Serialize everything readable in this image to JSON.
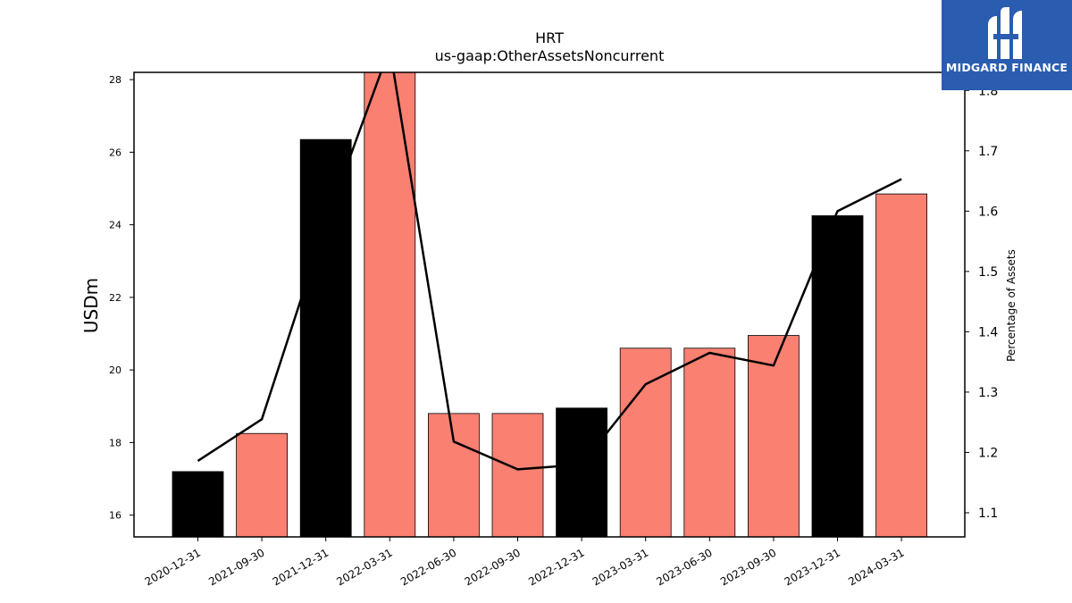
{
  "chart_data": {
    "type": "bar",
    "title": "HRT",
    "subtitle": "us-gaap:OtherAssetsNoncurrent",
    "ylabel": "USDm",
    "y2label": "Percentage of Assets",
    "categories": [
      "2020-12-31",
      "2021-09-30",
      "2021-12-31",
      "2022-03-31",
      "2022-06-30",
      "2022-09-30",
      "2022-12-31",
      "2023-03-31",
      "2023-06-30",
      "2023-09-30",
      "2023-12-31",
      "2024-03-31"
    ],
    "values": [
      17.2,
      18.25,
      26.35,
      28.3,
      18.8,
      18.8,
      18.95,
      20.6,
      20.6,
      20.95,
      24.25,
      24.85
    ],
    "bar_colors": [
      "#000000",
      "#fa8072",
      "#000000",
      "#fa8072",
      "#fa8072",
      "#fa8072",
      "#000000",
      "#fa8072",
      "#fa8072",
      "#fa8072",
      "#000000",
      "#fa8072"
    ],
    "line_values": [
      1.186,
      1.255,
      1.58,
      1.87,
      1.218,
      1.172,
      1.18,
      1.313,
      1.365,
      1.344,
      1.6,
      1.653
    ],
    "ylim": [
      15.4,
      28.2
    ],
    "y2lim": [
      1.06,
      1.83
    ],
    "yticks": [
      16,
      18,
      20,
      22,
      24,
      26,
      28
    ],
    "y2ticks": [
      1.1,
      1.2,
      1.3,
      1.4,
      1.5,
      1.6,
      1.7,
      1.8
    ],
    "grid": false
  },
  "logo": {
    "text": "MIDGARD FINANCE",
    "background": "#2a5db0"
  }
}
